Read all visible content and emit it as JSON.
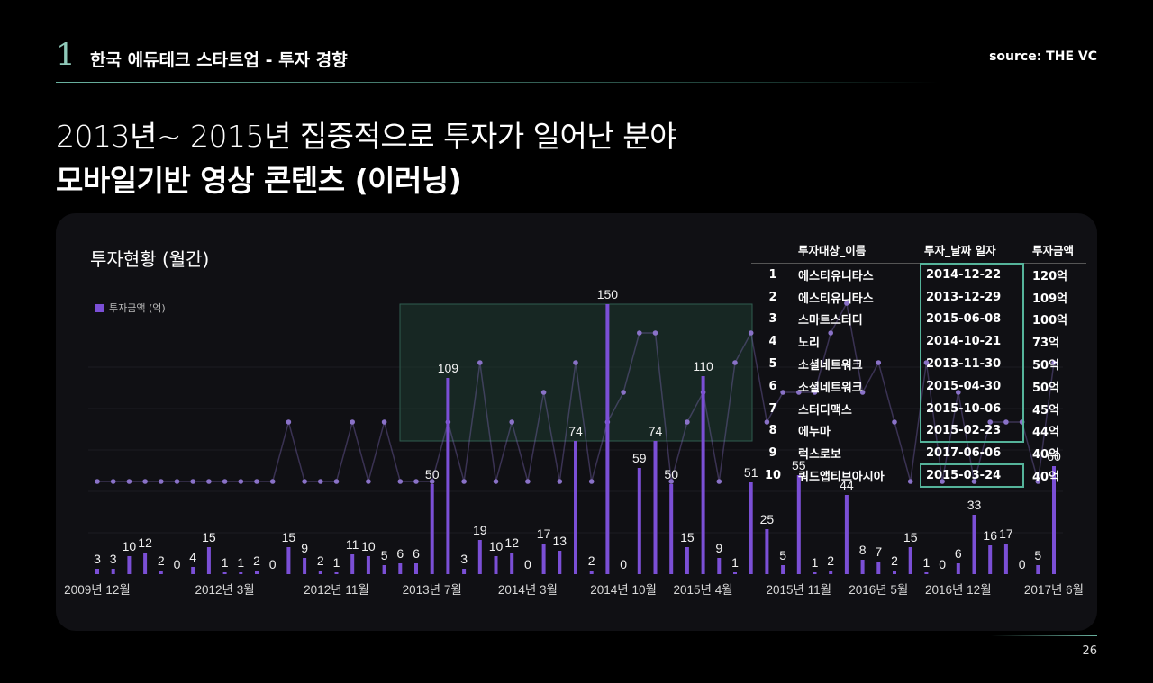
{
  "header": {
    "section_number": "1",
    "title": "한국 에듀테크 스타트업 - 투자 경향",
    "source": "source: THE VC"
  },
  "headline": {
    "line1": "2013년~ 2015년 집중적으로 투자가 일어난 분야",
    "line2": "모바일기반 영상 콘텐츠 (이러닝)"
  },
  "chart_title": "투자현황 (월간)",
  "legend_label": "투자금액 (억)",
  "page_number": "26",
  "colors": {
    "bar": "#7b4fd6",
    "line": "#8a72c8",
    "highlight": "#55b39a",
    "background": "#000000",
    "panel": "#101014"
  },
  "chart_data": {
    "type": "bar",
    "series": [
      {
        "name": "투자금액 (억)",
        "values": [
          3,
          3,
          10,
          12,
          2,
          0,
          4,
          15,
          1,
          1,
          2,
          0,
          15,
          9,
          2,
          1,
          11,
          10,
          5,
          6,
          6,
          50,
          109,
          3,
          19,
          10,
          12,
          0,
          17,
          13,
          74,
          2,
          150,
          0,
          59,
          74,
          50,
          15,
          110,
          9,
          1,
          51,
          25,
          5,
          55,
          1,
          2,
          44,
          8,
          7,
          2,
          15,
          1,
          0,
          6,
          33,
          16,
          17,
          0,
          5,
          60
        ]
      }
    ],
    "line_values": [
      5,
      5,
      5,
      5,
      5,
      5,
      5,
      5,
      5,
      5,
      5,
      5,
      7,
      5,
      5,
      5,
      7,
      5,
      7,
      5,
      5,
      5,
      7,
      5,
      9,
      5,
      7,
      5,
      8,
      5,
      9,
      5,
      7,
      8,
      10,
      10,
      5,
      7,
      8,
      5,
      9,
      10,
      7,
      8,
      8,
      8,
      10,
      11,
      8,
      9,
      7,
      5,
      9,
      5,
      8,
      5,
      7,
      7,
      7,
      5,
      9
    ],
    "x_tick_labels": [
      "2009년 12월",
      "2012년 3월",
      "2012년 11월",
      "2013년 7월",
      "2014년 3월",
      "2014년 10월",
      "2015년 4월",
      "2015년 11월",
      "2016년 5월",
      "2016년 12월",
      "2017년 6월"
    ],
    "ylim": [
      0,
      160
    ]
  },
  "investments_table": {
    "headers": [
      "투자대상_이름",
      "투자_날짜 일자",
      "투자금액"
    ],
    "rows": [
      {
        "rank": "1",
        "name": "에스티유니타스",
        "date": "2014-12-22",
        "amount": "120억"
      },
      {
        "rank": "2",
        "name": "에스티유니타스",
        "date": "2013-12-29",
        "amount": "109억"
      },
      {
        "rank": "3",
        "name": "스마트스터디",
        "date": "2015-06-08",
        "amount": "100억"
      },
      {
        "rank": "4",
        "name": "노리",
        "date": "2014-10-21",
        "amount": "73억"
      },
      {
        "rank": "5",
        "name": "소셜네트워크",
        "date": "2013-11-30",
        "amount": "50억"
      },
      {
        "rank": "6",
        "name": "소셜네트워크",
        "date": "2015-04-30",
        "amount": "50억"
      },
      {
        "rank": "7",
        "name": "스터디맥스",
        "date": "2015-10-06",
        "amount": "45억"
      },
      {
        "rank": "8",
        "name": "에누마",
        "date": "2015-02-23",
        "amount": "44억"
      },
      {
        "rank": "9",
        "name": "럭스로보",
        "date": "2017-06-06",
        "amount": "40억"
      },
      {
        "rank": "10",
        "name": "쿼드앱티브아시아",
        "date": "2015-03-24",
        "amount": "40억"
      }
    ]
  }
}
